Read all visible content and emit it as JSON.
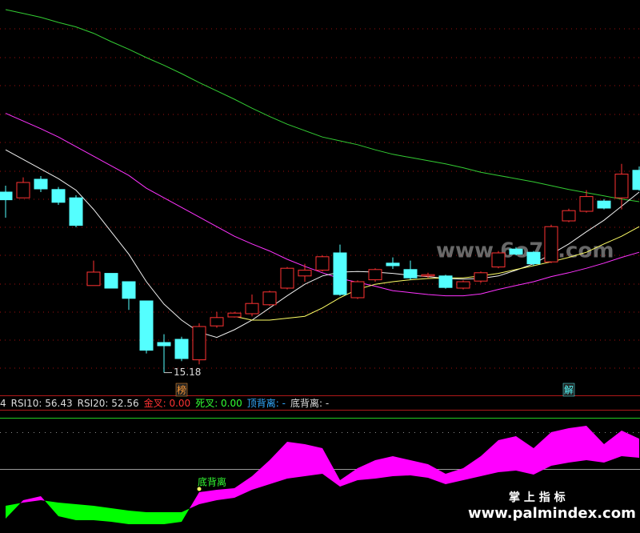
{
  "chart_data": [
    {
      "type": "candlestick",
      "ylim": [
        14.9,
        21.0
      ],
      "up_color": "#ff3232",
      "down_color": "#54ffff",
      "open": [
        18.0,
        17.91,
        18.2,
        18.04,
        17.91,
        16.54,
        16.73,
        16.6,
        16.3,
        15.65,
        15.7,
        15.38,
        15.91,
        16.05,
        16.1,
        16.24,
        16.5,
        16.69,
        16.78,
        17.05,
        16.35,
        16.63,
        16.89,
        16.79,
        16.69,
        16.69,
        16.5,
        16.61,
        16.83,
        17.11,
        17.06,
        16.91,
        17.55,
        17.7,
        17.86,
        17.91,
        18.34
      ],
      "high": [
        18.1,
        18.23,
        18.25,
        18.08,
        17.95,
        16.93,
        16.73,
        16.6,
        16.3,
        15.78,
        15.74,
        15.95,
        16.13,
        16.13,
        16.4,
        16.46,
        16.83,
        16.88,
        17.01,
        17.18,
        16.62,
        16.81,
        16.98,
        16.93,
        16.74,
        16.71,
        16.62,
        16.76,
        17.08,
        17.14,
        17.08,
        17.49,
        17.74,
        18.03,
        17.89,
        18.44,
        18.4
      ],
      "low": [
        17.6,
        17.91,
        18.0,
        17.8,
        17.45,
        16.54,
        16.5,
        16.16,
        15.48,
        15.18,
        15.36,
        15.31,
        15.88,
        16.04,
        16.06,
        16.22,
        16.48,
        16.6,
        16.76,
        16.38,
        16.33,
        16.6,
        16.8,
        16.63,
        16.66,
        16.49,
        16.48,
        16.58,
        16.81,
        17.01,
        16.85,
        16.89,
        17.53,
        17.68,
        17.73,
        17.73,
        18.02
      ],
      "close": [
        17.88,
        18.15,
        18.05,
        17.84,
        17.48,
        16.75,
        16.5,
        16.34,
        15.53,
        15.6,
        15.4,
        15.9,
        16.04,
        16.11,
        16.26,
        16.44,
        16.81,
        16.78,
        16.99,
        16.4,
        16.6,
        16.79,
        16.85,
        16.66,
        16.71,
        16.51,
        16.6,
        16.74,
        17.05,
        17.03,
        16.88,
        17.46,
        17.71,
        17.93,
        17.75,
        18.28,
        18.04
      ],
      "lines": [
        {
          "color": "#33cc33",
          "values": [
            20.85,
            20.79,
            20.73,
            20.65,
            20.58,
            20.48,
            20.35,
            20.23,
            20.1,
            19.98,
            19.85,
            19.71,
            19.58,
            19.45,
            19.31,
            19.18,
            19.06,
            18.96,
            18.86,
            18.8,
            18.74,
            18.66,
            18.59,
            18.54,
            18.49,
            18.44,
            18.38,
            18.31,
            18.26,
            18.21,
            18.16,
            18.1,
            18.04,
            17.99,
            17.94,
            17.89,
            17.85
          ]
        },
        {
          "color": "#ff33ff",
          "values": [
            19.23,
            19.11,
            18.99,
            18.86,
            18.71,
            18.56,
            18.41,
            18.26,
            18.06,
            17.91,
            17.76,
            17.61,
            17.46,
            17.31,
            17.19,
            17.08,
            16.95,
            16.84,
            16.74,
            16.65,
            16.59,
            16.53,
            16.46,
            16.43,
            16.4,
            16.38,
            16.38,
            16.41,
            16.48,
            16.54,
            16.6,
            16.68,
            16.74,
            16.81,
            16.89,
            16.98,
            17.06
          ]
        },
        {
          "color": "#f0f0f0",
          "values": [
            18.66,
            18.51,
            18.36,
            18.21,
            18.03,
            17.73,
            17.38,
            17.03,
            16.6,
            16.25,
            16.0,
            15.81,
            15.73,
            15.85,
            16.0,
            16.19,
            16.38,
            16.56,
            16.69,
            16.75,
            16.76,
            16.75,
            16.73,
            16.7,
            16.68,
            16.65,
            16.64,
            16.65,
            16.69,
            16.78,
            16.88,
            17.03,
            17.19,
            17.38,
            17.56,
            17.78,
            18.0
          ]
        },
        {
          "color": "#ffff66",
          "values": [
            null,
            null,
            null,
            null,
            null,
            null,
            null,
            null,
            null,
            null,
            null,
            null,
            null,
            16.06,
            16.0,
            16.0,
            16.03,
            16.06,
            16.19,
            16.35,
            16.48,
            16.56,
            16.6,
            16.63,
            16.65,
            16.66,
            16.66,
            16.69,
            16.73,
            16.79,
            16.85,
            16.91,
            16.98,
            17.06,
            17.19,
            17.31,
            17.46
          ]
        }
      ],
      "annotations": [
        {
          "index": 9,
          "value": 15.18
        }
      ],
      "signals": [
        {
          "text": "榜",
          "index": 10,
          "color": "#ff9933"
        },
        {
          "text": "解",
          "index": 32,
          "color": "#54ffff"
        }
      ]
    },
    {
      "type": "area_diff",
      "ylim": [
        37.5,
        60.5
      ],
      "above_color": "#ff00ff",
      "below_color": "#00ff00",
      "legend": [
        {
          "text": "4",
          "color": "#dddddd"
        },
        {
          "text": "RSI10: 56.43",
          "color": "#dddddd"
        },
        {
          "text": "RSI20: 52.56",
          "color": "#dddddd"
        },
        {
          "text": "金叉: 0.00",
          "color": "#ff3232"
        },
        {
          "text": "死叉: 0.00",
          "color": "#33ff33"
        },
        {
          "text": "顶背离: -",
          "color": "#33aaff"
        },
        {
          "text": "底背离: -",
          "color": "#dddddd"
        }
      ],
      "series": [
        {
          "values": [
            40.25,
            43.98,
            44.79,
            40.74,
            39.93,
            39.93,
            39.61,
            39.12,
            39.12,
            39.12,
            39.61,
            45.6,
            46.08,
            46.41,
            48.84,
            52.08,
            55.8,
            55.32,
            54.51,
            48.03,
            50.46,
            52.08,
            52.89,
            52.08,
            51.27,
            49.32,
            50.46,
            52.89,
            56.13,
            56.94,
            54.51,
            57.75,
            58.56,
            59.04,
            55.32,
            58.07,
            56.43
          ]
        },
        {
          "values": [
            42.85,
            43.49,
            43.98,
            43.49,
            43.17,
            42.85,
            42.36,
            41.87,
            41.55,
            41.55,
            41.55,
            43.17,
            43.98,
            44.46,
            46.08,
            47.22,
            48.35,
            48.84,
            49.32,
            46.73,
            48.03,
            48.35,
            48.84,
            49.0,
            48.51,
            47.22,
            48.03,
            48.84,
            49.65,
            49.97,
            49.16,
            50.94,
            51.59,
            52.08,
            51.59,
            52.89,
            52.56
          ]
        }
      ],
      "annotation": {
        "text": "底背离",
        "index": 11,
        "color": "#33ff33"
      }
    }
  ],
  "watermarks": [
    "www.6o7o.com",
    "掌 上 指 标",
    "www.palmindex.com"
  ]
}
